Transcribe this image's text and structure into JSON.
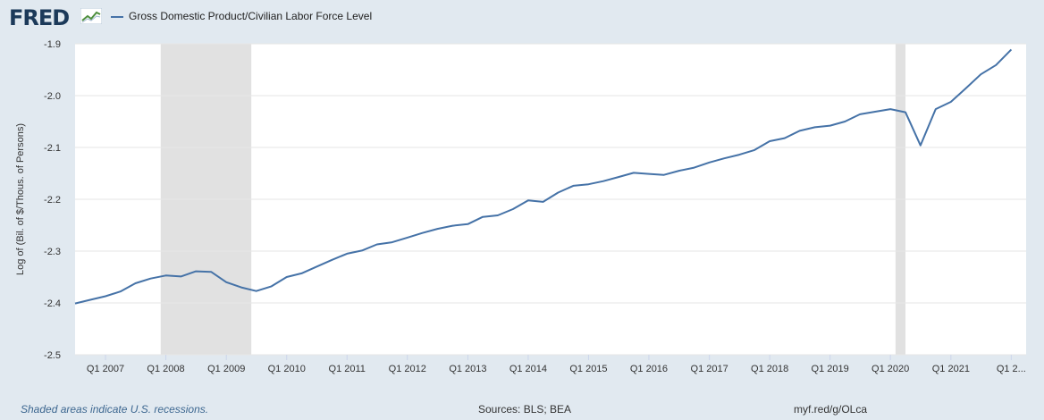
{
  "header": {
    "logo_text": "FRED",
    "logo_icon": "fred-chart-icon",
    "legend_label": "Gross Domestic Product/Civilian Labor Force Level"
  },
  "footer": {
    "note": "Shaded areas indicate U.S. recessions.",
    "sources": "Sources: BLS; BEA",
    "link": "myf.red/g/OLca"
  },
  "colors": {
    "series": "#4572a7",
    "recession": "#e1e1e1",
    "background": "#e1e9f0",
    "plot_background": "#ffffff"
  },
  "chart_data": {
    "type": "line",
    "ylabel": "Log of (Bil. of $/Thous. of Persons)",
    "ylim": [
      -2.5,
      -1.9
    ],
    "yticks": [
      "-1.9",
      "-2.0",
      "-2.1",
      "-2.2",
      "-2.3",
      "-2.4",
      "-2.5"
    ],
    "ytick_values": [
      -1.9,
      -2.0,
      -2.1,
      -2.2,
      -2.3,
      -2.4,
      -2.5
    ],
    "xlim": [
      "2006-07-01",
      "2022-04-01"
    ],
    "xticks": [
      {
        "label": "Q1 2007",
        "date": "2007-01-01"
      },
      {
        "label": "Q1 2008",
        "date": "2008-01-01"
      },
      {
        "label": "Q1 2009",
        "date": "2009-01-01"
      },
      {
        "label": "Q1 2010",
        "date": "2010-01-01"
      },
      {
        "label": "Q1 2011",
        "date": "2011-01-01"
      },
      {
        "label": "Q1 2012",
        "date": "2012-01-01"
      },
      {
        "label": "Q1 2013",
        "date": "2013-01-01"
      },
      {
        "label": "Q1 2014",
        "date": "2014-01-01"
      },
      {
        "label": "Q1 2015",
        "date": "2015-01-01"
      },
      {
        "label": "Q1 2016",
        "date": "2016-01-01"
      },
      {
        "label": "Q1 2017",
        "date": "2017-01-01"
      },
      {
        "label": "Q1 2018",
        "date": "2018-01-01"
      },
      {
        "label": "Q1 2019",
        "date": "2019-01-01"
      },
      {
        "label": "Q1 2020",
        "date": "2020-01-01"
      },
      {
        "label": "Q1 2021",
        "date": "2021-01-01"
      },
      {
        "label": "Q1 2...",
        "date": "2022-01-01"
      }
    ],
    "recessions": [
      {
        "start": "2007-12-01",
        "end": "2009-06-01"
      },
      {
        "start": "2020-02-01",
        "end": "2020-04-01"
      }
    ],
    "grid": true,
    "series": [
      {
        "name": "Gross Domestic Product/Civilian Labor Force Level",
        "x": [
          "2006-07-01",
          "2006-10-01",
          "2007-01-01",
          "2007-04-01",
          "2007-07-01",
          "2007-10-01",
          "2008-01-01",
          "2008-04-01",
          "2008-07-01",
          "2008-10-01",
          "2009-01-01",
          "2009-04-01",
          "2009-07-01",
          "2009-10-01",
          "2010-01-01",
          "2010-04-01",
          "2010-07-01",
          "2010-10-01",
          "2011-01-01",
          "2011-04-01",
          "2011-07-01",
          "2011-10-01",
          "2012-01-01",
          "2012-04-01",
          "2012-07-01",
          "2012-10-01",
          "2013-01-01",
          "2013-04-01",
          "2013-07-01",
          "2013-10-01",
          "2014-01-01",
          "2014-04-01",
          "2014-07-01",
          "2014-10-01",
          "2015-01-01",
          "2015-04-01",
          "2015-07-01",
          "2015-10-01",
          "2016-01-01",
          "2016-04-01",
          "2016-07-01",
          "2016-10-01",
          "2017-01-01",
          "2017-04-01",
          "2017-07-01",
          "2017-10-01",
          "2018-01-01",
          "2018-04-01",
          "2018-07-01",
          "2018-10-01",
          "2019-01-01",
          "2019-04-01",
          "2019-07-01",
          "2019-10-01",
          "2020-01-01",
          "2020-04-01",
          "2020-07-01",
          "2020-10-01",
          "2021-01-01",
          "2021-04-01",
          "2021-07-01",
          "2021-10-01",
          "2022-01-01"
        ],
        "y": [
          -2.401,
          -2.394,
          -2.387,
          -2.378,
          -2.362,
          -2.353,
          -2.347,
          -2.349,
          -2.339,
          -2.34,
          -2.36,
          -2.37,
          -2.377,
          -2.368,
          -2.35,
          -2.343,
          -2.33,
          -2.317,
          -2.305,
          -2.299,
          -2.287,
          -2.283,
          -2.274,
          -2.265,
          -2.257,
          -2.251,
          -2.248,
          -2.234,
          -2.231,
          -2.219,
          -2.202,
          -2.205,
          -2.187,
          -2.174,
          -2.171,
          -2.165,
          -2.157,
          -2.149,
          -2.151,
          -2.153,
          -2.145,
          -2.139,
          -2.129,
          -2.121,
          -2.114,
          -2.105,
          -2.088,
          -2.082,
          -2.068,
          -2.061,
          -2.058,
          -2.05,
          -2.036,
          -2.031,
          -2.026,
          -2.032,
          -2.096,
          -2.026,
          -2.012,
          -1.986,
          -1.959,
          -1.941,
          -1.911
        ]
      }
    ]
  }
}
